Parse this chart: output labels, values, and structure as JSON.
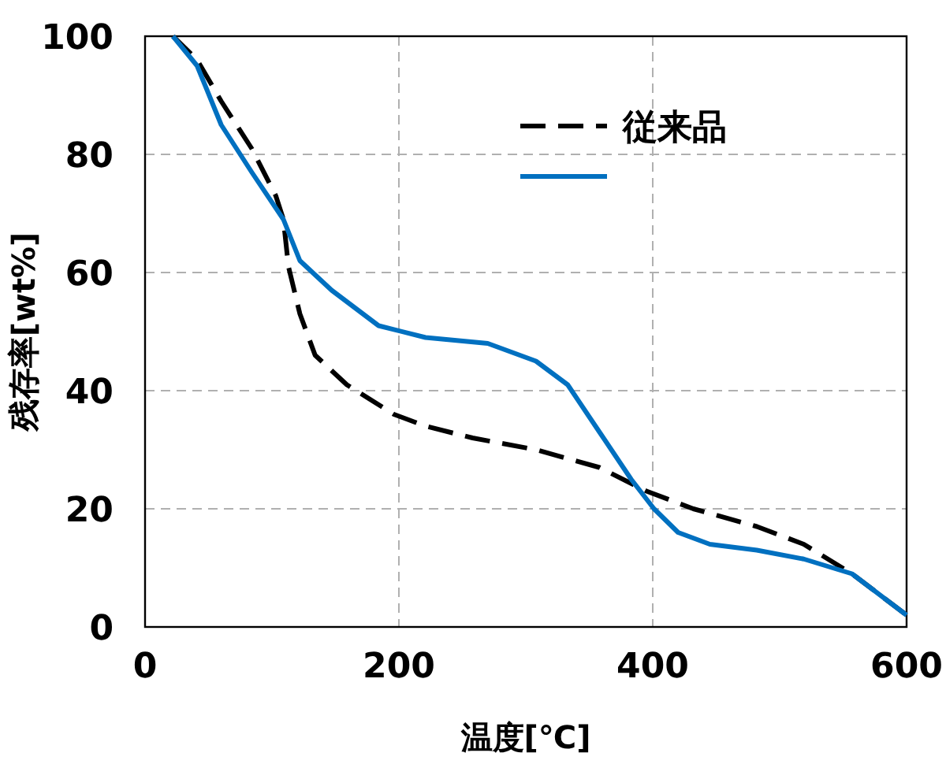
{
  "chart_data": {
    "type": "line",
    "xlabel": "温度[℃]",
    "ylabel": "残存率[wt%]",
    "xlim": [
      0,
      600
    ],
    "ylim": [
      0,
      100
    ],
    "xticks": [
      0,
      200,
      400,
      600
    ],
    "yticks": [
      0,
      20,
      40,
      60,
      80,
      100
    ],
    "grid": true,
    "legend": "top right",
    "series": [
      {
        "name": "従来品",
        "color": "#000000",
        "line_style": "dashed",
        "x": [
          22,
          41,
          60,
          84,
          103,
          109,
          113,
          122,
          134,
          159,
          196,
          221,
          258,
          308,
          358,
          395,
          432,
          482,
          519,
          557,
          600
        ],
        "values": [
          100,
          96,
          89,
          81,
          73,
          69,
          61,
          53,
          46,
          41,
          36,
          34,
          32,
          30,
          27,
          23,
          20,
          17,
          14,
          9,
          2
        ]
      },
      {
        "color": "#0070c0",
        "line_style": "solid",
        "x": [
          22,
          41,
          60,
          84,
          109,
          122,
          147,
          184,
          221,
          270,
          308,
          333,
          358,
          383,
          401,
          420,
          445,
          482,
          519,
          557,
          600
        ],
        "values": [
          100,
          95,
          85,
          77,
          69,
          62,
          57,
          51,
          49,
          48,
          45,
          41,
          33,
          25,
          20,
          16,
          14,
          13,
          11.5,
          9,
          2
        ]
      }
    ]
  }
}
